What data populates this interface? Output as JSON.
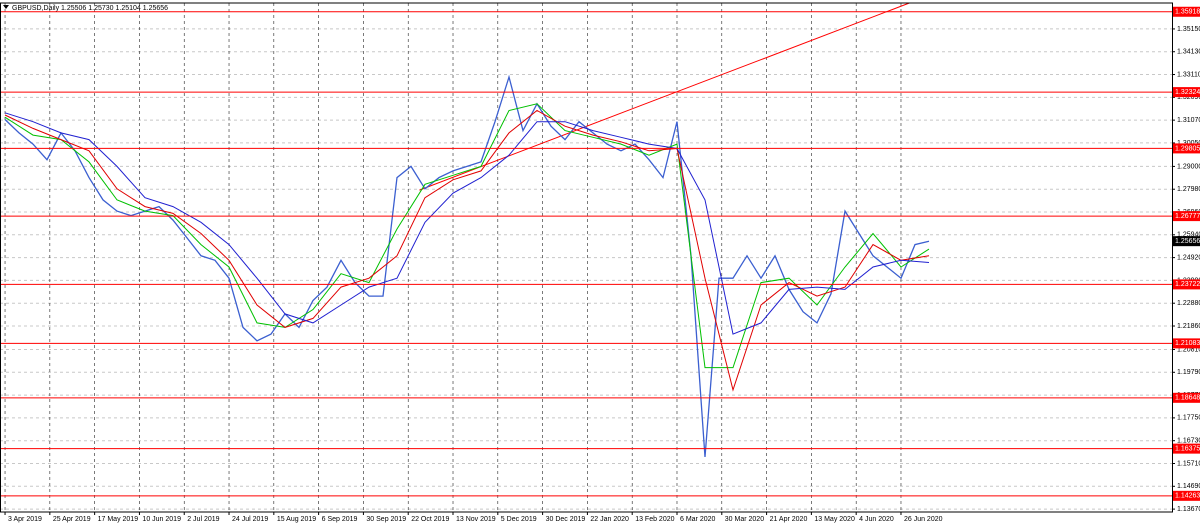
{
  "chart_data": {
    "type": "line",
    "title": "GBPUSD,Daily  1.25506 1.25730 1.25104 1.25656",
    "xlim": [
      -1.8,
      416.8
    ],
    "ylim": [
      1.1354,
      1.3631
    ],
    "xticks": [
      {
        "value": 0,
        "label": "3 Apr 2019"
      },
      {
        "value": 16,
        "label": "25 Apr 2019"
      },
      {
        "value": 32,
        "label": "17 May 2019"
      },
      {
        "value": 48,
        "label": "10 Jun 2019"
      },
      {
        "value": 64,
        "label": "2 Jul 2019"
      },
      {
        "value": 80,
        "label": "24 Jul 2019"
      },
      {
        "value": 96,
        "label": "15 Aug 2019"
      },
      {
        "value": 112,
        "label": "6 Sep 2019"
      },
      {
        "value": 128,
        "label": "30 Sep 2019"
      },
      {
        "value": 144,
        "label": "22 Oct 2019"
      },
      {
        "value": 160,
        "label": "13 Nov 2019"
      },
      {
        "value": 176,
        "label": "5 Dec 2019"
      },
      {
        "value": 192,
        "label": "30 Dec 2019"
      },
      {
        "value": 208,
        "label": "22 Jan 2020"
      },
      {
        "value": 224,
        "label": "13 Feb 2020"
      },
      {
        "value": 240,
        "label": "6 Mar 2020"
      },
      {
        "value": 256,
        "label": "30 Mar 2020"
      },
      {
        "value": 272,
        "label": "21 Apr 2020"
      },
      {
        "value": 288,
        "label": "13 May 2020"
      },
      {
        "value": 304,
        "label": "4 Jun 2020"
      },
      {
        "value": 320,
        "label": "26 Jun 2020"
      }
    ],
    "yticks": [
      {
        "value": 1.3515,
        "label": "1.35150"
      },
      {
        "value": 1.3413,
        "label": "1.34130"
      },
      {
        "value": 1.3311,
        "label": "1.33110"
      },
      {
        "value": 1.3209,
        "label": "1.32090"
      },
      {
        "value": 1.3107,
        "label": "1.31070"
      },
      {
        "value": 1.3005,
        "label": "1.30050"
      },
      {
        "value": 1.29,
        "label": "1.29000"
      },
      {
        "value": 1.2798,
        "label": "1.27980"
      },
      {
        "value": 1.2696,
        "label": "1.26960"
      },
      {
        "value": 1.2594,
        "label": "1.25940"
      },
      {
        "value": 1.2492,
        "label": "1.24920"
      },
      {
        "value": 1.239,
        "label": "1.23900"
      },
      {
        "value": 1.2288,
        "label": "1.22880"
      },
      {
        "value": 1.2186,
        "label": "1.21860"
      },
      {
        "value": 1.2081,
        "label": "1.20810"
      },
      {
        "value": 1.1979,
        "label": "1.19790"
      },
      {
        "value": 1.1877,
        "label": "1.18770"
      },
      {
        "value": 1.1775,
        "label": "1.17750"
      },
      {
        "value": 1.1673,
        "label": "1.16730"
      },
      {
        "value": 1.1571,
        "label": "1.15710"
      },
      {
        "value": 1.1469,
        "label": "1.14690"
      },
      {
        "value": 1.1367,
        "label": "1.13670"
      }
    ],
    "grid": true,
    "series": [
      {
        "name": "GBPUSD",
        "color": "#3b5fd0",
        "x": [
          0,
          5,
          10,
          15,
          20,
          25,
          30,
          35,
          40,
          45,
          50,
          55,
          60,
          65,
          70,
          75,
          80,
          85,
          90,
          95,
          100,
          105,
          110,
          115,
          120,
          125,
          130,
          135,
          140,
          145,
          150,
          155,
          160,
          165,
          170,
          175,
          180,
          185,
          190,
          195,
          200,
          205,
          210,
          215,
          220,
          225,
          230,
          235,
          240,
          245,
          250,
          255,
          260,
          265,
          270,
          275,
          280,
          285,
          290,
          295,
          300,
          305,
          310,
          315,
          320,
          325,
          330
        ],
        "values": [
          1.311,
          1.305,
          1.3,
          1.293,
          1.305,
          1.297,
          1.285,
          1.275,
          1.27,
          1.268,
          1.27,
          1.272,
          1.266,
          1.258,
          1.25,
          1.248,
          1.24,
          1.218,
          1.212,
          1.215,
          1.224,
          1.218,
          1.23,
          1.236,
          1.248,
          1.238,
          1.232,
          1.232,
          1.285,
          1.29,
          1.28,
          1.285,
          1.288,
          1.29,
          1.292,
          1.31,
          1.33,
          1.306,
          1.318,
          1.308,
          1.302,
          1.31,
          1.305,
          1.3,
          1.297,
          1.3,
          1.293,
          1.285,
          1.31,
          1.25,
          1.16,
          1.24,
          1.24,
          1.25,
          1.24,
          1.25,
          1.235,
          1.225,
          1.22,
          1.233,
          1.27,
          1.26,
          1.25,
          1.245,
          1.24,
          1.255,
          1.25656
        ]
      },
      {
        "color": "#00c000",
        "x": [
          0,
          10,
          20,
          30,
          40,
          50,
          60,
          70,
          80,
          90,
          100,
          110,
          120,
          130,
          140,
          150,
          160,
          170,
          180,
          190,
          200,
          210,
          220,
          230,
          240,
          250,
          260,
          270,
          280,
          290,
          300,
          310,
          320,
          330
        ],
        "values": [
          1.312,
          1.304,
          1.302,
          1.292,
          1.275,
          1.27,
          1.268,
          1.255,
          1.245,
          1.22,
          1.218,
          1.226,
          1.242,
          1.238,
          1.262,
          1.282,
          1.286,
          1.29,
          1.315,
          1.318,
          1.306,
          1.303,
          1.3,
          1.295,
          1.3,
          1.2,
          1.2,
          1.238,
          1.24,
          1.228,
          1.245,
          1.26,
          1.245,
          1.253
        ]
      },
      {
        "color": "#e00000",
        "x": [
          0,
          10,
          20,
          30,
          40,
          50,
          60,
          70,
          80,
          90,
          100,
          110,
          120,
          130,
          140,
          150,
          160,
          170,
          180,
          190,
          200,
          210,
          220,
          230,
          240,
          250,
          260,
          270,
          280,
          290,
          300,
          310,
          320,
          330
        ],
        "values": [
          1.313,
          1.307,
          1.302,
          1.297,
          1.28,
          1.272,
          1.269,
          1.26,
          1.248,
          1.228,
          1.218,
          1.222,
          1.236,
          1.24,
          1.25,
          1.276,
          1.284,
          1.288,
          1.305,
          1.315,
          1.308,
          1.304,
          1.301,
          1.297,
          1.298,
          1.24,
          1.19,
          1.228,
          1.238,
          1.232,
          1.236,
          1.255,
          1.248,
          1.25
        ]
      },
      {
        "color": "#2020d0",
        "x": [
          0,
          10,
          20,
          30,
          40,
          50,
          60,
          70,
          80,
          90,
          100,
          110,
          120,
          130,
          140,
          150,
          160,
          170,
          180,
          190,
          200,
          210,
          220,
          230,
          240,
          250,
          260,
          270,
          280,
          290,
          300,
          310,
          320,
          330
        ],
        "values": [
          1.314,
          1.31,
          1.305,
          1.302,
          1.29,
          1.276,
          1.272,
          1.265,
          1.255,
          1.24,
          1.224,
          1.22,
          1.228,
          1.236,
          1.24,
          1.265,
          1.278,
          1.285,
          1.295,
          1.31,
          1.31,
          1.306,
          1.303,
          1.3,
          1.298,
          1.275,
          1.215,
          1.22,
          1.235,
          1.236,
          1.235,
          1.245,
          1.248,
          1.247
        ]
      }
    ],
    "levels": [
      1.35918,
      1.32324,
      1.29805,
      1.26777,
      1.23722,
      1.21083,
      1.18648,
      1.16375,
      1.14263
    ],
    "level_color": "#ff0000",
    "current_price": 1.25656,
    "trendline": {
      "x": [
        148,
        323
      ],
      "values": [
        1.2794,
        1.3631
      ],
      "color": "#ff0000"
    }
  }
}
